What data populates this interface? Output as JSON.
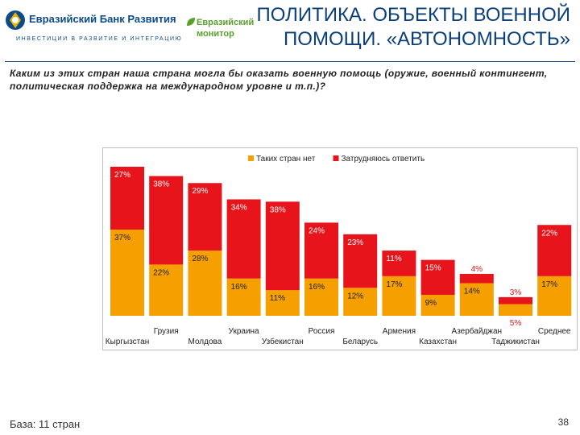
{
  "header": {
    "bank_name": "Евразийский Банк Развития",
    "bank_tagline": "ИНВЕСТИЦИИ В РАЗВИТИЕ И ИНТЕГРАЦИЮ",
    "monitor_line1": "Евразийский",
    "monitor_line2": "монитор",
    "title_line1": "ПОЛИТИКА. ОБЪЕКТЫ ВОЕННОЙ",
    "title_line2": "ПОМОЩИ. «АВТОНОМНОСТЬ»"
  },
  "question": "Каким из этих стран наша страна могла бы оказать военную помощь (оружие, военный контингент, политическая поддержка на международном уровне и т.п.)?",
  "footer": {
    "base": "База: 11 стран",
    "page": "38"
  },
  "colors": {
    "series_no": "#F5A000",
    "series_unsure": "#E8141B",
    "title": "#0b3f7a"
  },
  "chart_data": {
    "type": "bar",
    "stacked": true,
    "title": "",
    "legend_position": "top",
    "categories": [
      "Кыргызстан",
      "Грузия",
      "Молдова",
      "Украина",
      "Узбекистан",
      "Россия",
      "Беларусь",
      "Армения",
      "Казахстан",
      "Азербайджан",
      "Таджикистан",
      "Среднее"
    ],
    "series": [
      {
        "name": "Таких стран нет",
        "labels": [
          "37%",
          "22%",
          "28%",
          "16%",
          "11%",
          "16%",
          "12%",
          "17%",
          "9%",
          "14%",
          "5%",
          "17%"
        ],
        "values": [
          37,
          22,
          28,
          16,
          11,
          16,
          12,
          17,
          9,
          14,
          5,
          17
        ]
      },
      {
        "name": "Затрудняюсь ответить",
        "labels": [
          "27%",
          "38%",
          "29%",
          "34%",
          "38%",
          "24%",
          "23%",
          "11%",
          "15%",
          "4%",
          "3%",
          "22%"
        ],
        "values": [
          27,
          38,
          29,
          34,
          38,
          24,
          23,
          11,
          15,
          4,
          3,
          22
        ]
      }
    ],
    "ylim": [
      0,
      64
    ]
  }
}
